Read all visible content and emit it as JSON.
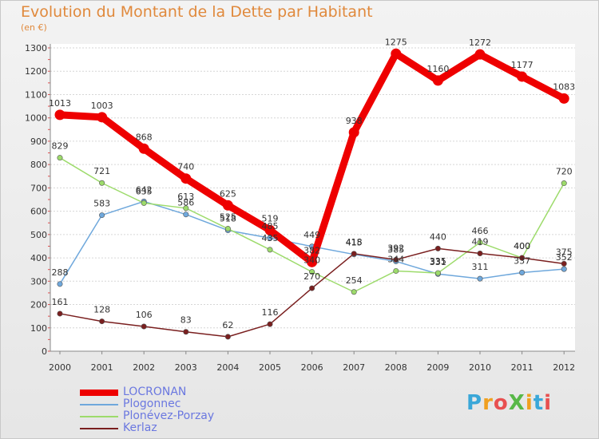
{
  "title": "Evolution du Montant de la Dette par Habitant",
  "unit": "(en €)",
  "logo": {
    "text": "ProXiti",
    "colors": [
      "#3aa7d8",
      "#f0a020",
      "#e85050",
      "#58b848",
      "#f0a020",
      "#3aa7d8",
      "#e85050"
    ]
  },
  "chart_data": {
    "type": "line",
    "x": [
      "2000",
      "2001",
      "2002",
      "2003",
      "2004",
      "2005",
      "2006",
      "2007",
      "2008",
      "2009",
      "2010",
      "2011",
      "2012"
    ],
    "ylim": [
      0,
      1300
    ],
    "yticks": [
      0,
      100,
      200,
      300,
      400,
      500,
      600,
      700,
      800,
      900,
      1000,
      1100,
      1200,
      1300
    ],
    "grid": "horizontal",
    "legend": "bottom-left",
    "series": [
      {
        "name": "LOCRONAN",
        "color": "#ee0000",
        "values": [
          1013,
          1003,
          868,
          740,
          625,
          519,
          382,
          938,
          1275,
          1160,
          1272,
          1177,
          1083
        ],
        "labels": [
          "1013",
          "1003",
          "868",
          "740",
          "625",
          "519",
          "382",
          "938",
          "1275",
          "1160",
          "1272",
          "1177",
          "1083"
        ]
      },
      {
        "name": "Plogonnec",
        "color": "#6fa8dc",
        "values": [
          288,
          583,
          642,
          586,
          518,
          485,
          449,
          415,
          385,
          331,
          311,
          337,
          352
        ],
        "labels": [
          "288",
          "583",
          "642",
          "586",
          "518",
          "485",
          "449",
          "415",
          "385",
          "331",
          "311",
          "337",
          "352"
        ]
      },
      {
        "name": "Plonévez-Porzay",
        "color": "#9ddb6b",
        "values": [
          829,
          721,
          635,
          613,
          525,
          435,
          340,
          254,
          344,
          335,
          466,
          400,
          720
        ],
        "labels": [
          "829",
          "721",
          "635",
          "613",
          "525",
          "435",
          "340",
          "254",
          "344",
          "335",
          "466",
          "400",
          "720"
        ]
      },
      {
        "name": "Kerlaz",
        "color": "#7a1f1f",
        "values": [
          161,
          128,
          106,
          83,
          62,
          116,
          270,
          418,
          392,
          440,
          419,
          400,
          375
        ],
        "labels": [
          "161",
          "128",
          "106",
          "83",
          "62",
          "116",
          "270",
          "418",
          "392",
          "440",
          "419",
          "400",
          "375"
        ]
      }
    ]
  }
}
